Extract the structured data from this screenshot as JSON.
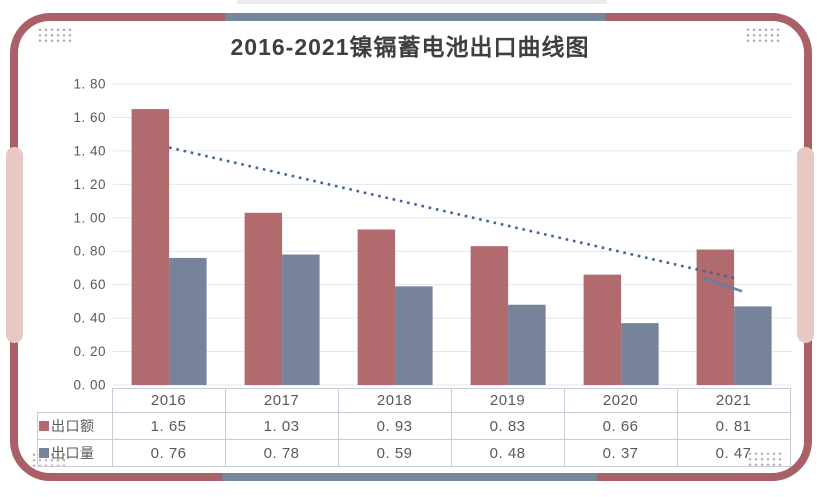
{
  "card": {
    "border_color": "#a96067",
    "accent_gray": "#76879c",
    "accent_pink": "#e7c8c3"
  },
  "chart_data": {
    "type": "bar",
    "title": "2016-2021镍镉蓄电池出口曲线图",
    "categories": [
      "2016",
      "2017",
      "2018",
      "2019",
      "2020",
      "2021"
    ],
    "series": [
      {
        "name": "出口额",
        "color": "#b16a6e",
        "values": [
          1.65,
          1.03,
          0.93,
          0.83,
          0.66,
          0.81
        ]
      },
      {
        "name": "出口量",
        "color": "#76839b",
        "values": [
          0.76,
          0.78,
          0.59,
          0.48,
          0.37,
          0.47
        ]
      }
    ],
    "trendline": {
      "color": "#44639c",
      "style": "dotted",
      "points": [
        {
          "x": 2016,
          "v": 1.42
        },
        {
          "x": 2018.5,
          "v": 1.03
        },
        {
          "x": 2021,
          "v": 0.64
        }
      ],
      "solid_tail": {
        "color": "#647ea6",
        "from_x_offset": -30,
        "from_v": 0.64,
        "to_x_offset": 8,
        "to_v": 0.56
      }
    },
    "ylim": [
      0,
      1.8
    ],
    "y_tick_step": 0.2,
    "y_tick_labels": [
      "0. 00",
      "0. 20",
      "0. 40",
      "0. 60",
      "0. 80",
      "1. 00",
      "1. 20",
      "1. 40",
      "1. 60",
      "1. 80"
    ],
    "grid": true,
    "gridline_color": "#e3e8ef",
    "legend_position": "data-table-left",
    "data_table": {
      "border_color": "#c6cdd8",
      "rows": [
        {
          "label": "出口额",
          "marker_color": "#b16a6e",
          "values": [
            "1. 65",
            "1. 03",
            "0. 93",
            "0. 83",
            "0. 66",
            "0. 81"
          ]
        },
        {
          "label": "出口量",
          "marker_color": "#76839b",
          "values": [
            "0. 76",
            "0. 78",
            "0. 59",
            "0. 48",
            "0. 37",
            "0. 47"
          ]
        }
      ]
    }
  }
}
